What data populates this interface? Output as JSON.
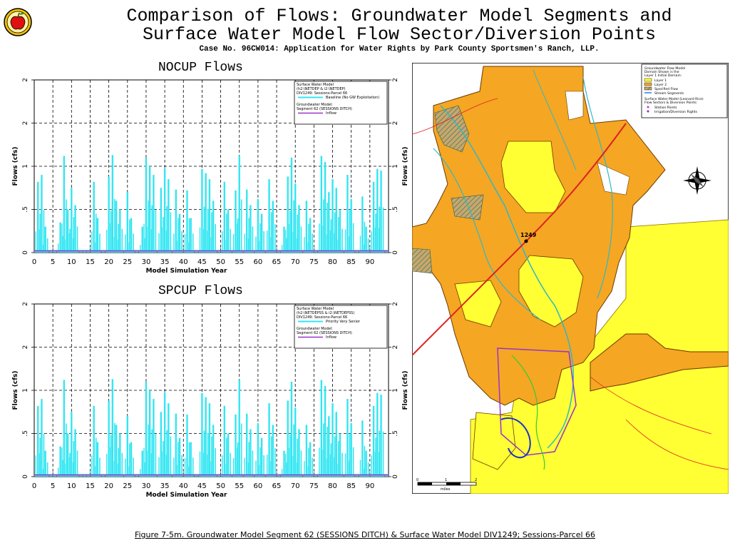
{
  "header": {
    "title_line1": "Comparison of Flows: Groundwater Model Segments and",
    "title_line2": "Surface Water Model Flow Sector/Diversion Points",
    "subtitle": "Case No. 96CW014: Application for Water Rights by Park County Sportsmen's Ranch, LLP.",
    "logo_icon": "apple-logo-icon"
  },
  "colors": {
    "surface_flow": "#33e6f2",
    "inflow": "#9933cc",
    "gw_domain": "#f5a623",
    "layer1": "#ffff33",
    "stream": "#3377ff",
    "road": "#dd3333"
  },
  "chart_data": [
    {
      "type": "bar",
      "title": "NOCUP Flows",
      "xlabel": "Model Simulation Year",
      "ylabel": "Flows (cfs)",
      "xlim": [
        0,
        95
      ],
      "xticks": [
        "0",
        "5",
        "10",
        "15",
        "20",
        "25",
        "30",
        "35",
        "40",
        "45",
        "50",
        "55",
        "60",
        "65",
        "70",
        "75",
        "80",
        "85",
        "90"
      ],
      "yticks": [
        "0",
        ".5",
        "1",
        "2",
        "2"
      ],
      "grid": true,
      "legend_position": "top-right",
      "legend": {
        "block1_line1": "Surface Water Model",
        "block1_line2": "(h2:\\NETDEP & i2:\\NETDEP)",
        "block1_line3": "DIV1249: Sessions-Parcel 66",
        "series1_name": "Baseline (No GW Exploitation)",
        "block2_line1": "Groundwater Model:",
        "block2_line2": "Segment 62 (SESSIONS DITCH)",
        "series2_name": "Inflow"
      },
      "series": [
        {
          "name": "Baseline (No GW Exploitation)",
          "x": [
            1,
            2,
            3,
            7,
            8,
            9,
            10,
            11,
            16,
            17,
            20,
            21,
            22,
            23,
            25,
            26,
            29,
            30,
            31,
            32,
            34,
            35,
            36,
            38,
            39,
            41,
            42,
            45,
            46,
            47,
            48,
            51,
            52,
            54,
            55,
            57,
            58,
            60,
            61,
            63,
            64,
            67,
            68,
            69,
            70,
            71,
            73,
            74,
            77,
            78,
            79,
            80,
            81,
            82,
            84,
            85,
            88,
            89,
            91,
            92,
            93
          ],
          "values": [
            0.82,
            0.9,
            0.3,
            0.35,
            1.12,
            0.5,
            0.75,
            0.55,
            0.82,
            0.4,
            0.88,
            1.13,
            0.6,
            0.5,
            0.7,
            0.4,
            0.3,
            1.1,
            1.0,
            0.9,
            0.75,
            0.98,
            0.85,
            0.73,
            0.45,
            0.72,
            0.4,
            0.97,
            0.92,
            0.85,
            0.6,
            0.82,
            0.5,
            0.72,
            1.12,
            0.73,
            0.55,
            0.62,
            0.45,
            0.85,
            0.6,
            0.3,
            0.88,
            1.1,
            0.8,
            0.55,
            0.6,
            0.4,
            1.12,
            1.05,
            0.7,
            0.85,
            0.75,
            0.5,
            0.9,
            0.62,
            0.65,
            0.3,
            0.82,
            0.97,
            0.95
          ]
        },
        {
          "name": "Inflow",
          "x": [
            0,
            95
          ],
          "values": [
            0.02,
            0.02
          ]
        }
      ]
    },
    {
      "type": "bar",
      "title": "SPCUP Flows",
      "xlabel": "Model Simulation Year",
      "ylabel": "Flows (cfs)",
      "xlim": [
        0,
        95
      ],
      "xticks": [
        "0",
        "5",
        "10",
        "15",
        "20",
        "25",
        "30",
        "35",
        "40",
        "45",
        "50",
        "55",
        "60",
        "65",
        "70",
        "75",
        "80",
        "85",
        "90"
      ],
      "yticks": [
        "0",
        ".5",
        "1",
        "2",
        "2"
      ],
      "grid": true,
      "legend_position": "top-right",
      "legend": {
        "block1_line1": "Surface Water Model",
        "block1_line2": "(h2:\\NETDEPSS & i2:\\NETDEPSS)",
        "block1_line3": "DIV1249: Sessions-Parcel 66",
        "series1_name": "Priority Very Senior",
        "block2_line1": "Groundwater Model:",
        "block2_line2": "Segment 62 (SESSIONS DITCH)",
        "series2_name": "Inflow"
      },
      "series": [
        {
          "name": "Priority Very Senior",
          "x": [
            1,
            2,
            3,
            7,
            8,
            9,
            10,
            11,
            16,
            17,
            20,
            21,
            22,
            23,
            25,
            26,
            29,
            30,
            31,
            32,
            34,
            35,
            36,
            38,
            39,
            41,
            42,
            45,
            46,
            47,
            48,
            51,
            52,
            54,
            55,
            57,
            58,
            60,
            61,
            63,
            64,
            67,
            68,
            69,
            70,
            71,
            73,
            74,
            77,
            78,
            79,
            80,
            81,
            82,
            84,
            85,
            88,
            89,
            91,
            92,
            93
          ],
          "values": [
            0.82,
            0.9,
            0.3,
            0.35,
            1.12,
            0.5,
            0.75,
            0.55,
            0.82,
            0.4,
            0.88,
            1.13,
            0.6,
            0.5,
            0.7,
            0.4,
            0.3,
            1.1,
            1.0,
            0.9,
            0.75,
            0.98,
            0.85,
            0.73,
            0.45,
            0.72,
            0.4,
            0.97,
            0.92,
            0.85,
            0.6,
            0.82,
            0.5,
            0.72,
            1.12,
            0.73,
            0.55,
            0.62,
            0.45,
            0.85,
            0.6,
            0.3,
            0.88,
            1.1,
            0.8,
            0.55,
            0.6,
            0.4,
            1.12,
            1.05,
            0.7,
            0.85,
            0.75,
            0.5,
            0.9,
            0.62,
            0.65,
            0.3,
            0.82,
            0.97,
            0.95
          ]
        },
        {
          "name": "Inflow",
          "x": [
            0,
            95
          ],
          "values": [
            0.02,
            0.02
          ]
        }
      ]
    }
  ],
  "map": {
    "legend": {
      "line1": "Groundwater Flow Model",
      "line2": "Domain Shown is the",
      "line3": "Layer 1 Initial Domain:",
      "layer1": "Layer 1",
      "layer2": "Layer 2",
      "specified_flow": "Specified Flow",
      "stream_segments": "Stream Segments",
      "sw_line1": "Surface Water Model (Leonard Rice)",
      "sw_line2": "Flow Sectors & Diversion Points:",
      "station_points": "Station Points",
      "irrigation_points": "Irrigation/Diversion Rights"
    },
    "div_label": "1249",
    "scale_label": "miles",
    "scale_ticks": [
      "0",
      "1",
      "2"
    ],
    "compass_icon": "compass-rose-icon"
  },
  "caption": "Figure 7-5m. Groundwater Model Segment 62 (SESSIONS DITCH) & Surface Water Model DIV1249; Sessions-Parcel 66"
}
